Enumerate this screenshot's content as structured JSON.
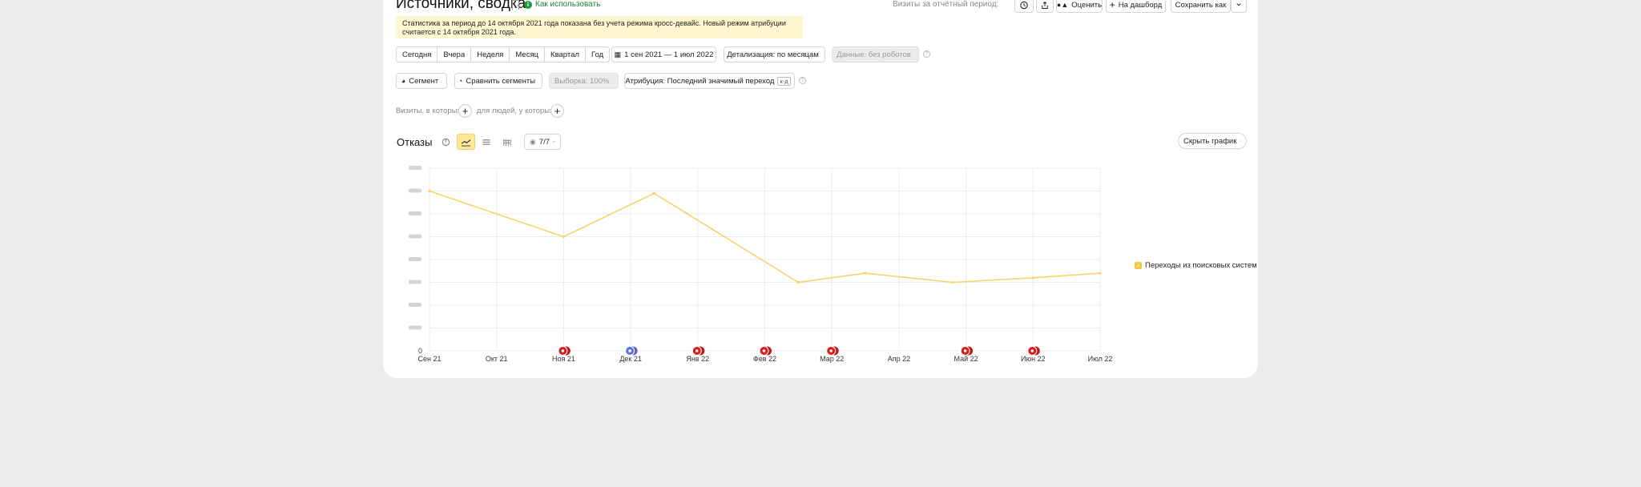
{
  "header": {
    "title": "Источники, сводка",
    "help_link": "Как использовать",
    "visits_label": "Визиты за отчётный период:",
    "rate_button": "Оценить",
    "dashboard_button": "На дашборд",
    "save_as_button": "Сохранить как"
  },
  "notice": {
    "line1": "Статистика за период до 14 октября 2021 года показана без учета режима кросс-девайс. Новый режим атрибуции",
    "line2": "считается с 14 октября 2021 года."
  },
  "period": {
    "options": [
      "Сегодня",
      "Вчера",
      "Неделя",
      "Месяц",
      "Квартал",
      "Год"
    ],
    "date_range": "1 сен 2021 — 1 июл 2022",
    "detail": "Детализация: по месяцам",
    "data_filter": "Данные: без роботов"
  },
  "filters": {
    "segment": "Сегмент",
    "compare": "Сравнить сегменты",
    "sample": "Выборка: 100%",
    "attribution": "Атрибуция: Последний значимый переход",
    "attribution_badge": "к-д"
  },
  "conditions": {
    "visits_where": "Визиты, в которых",
    "people_where": "для людей, у которых"
  },
  "chart_controls": {
    "metric_title": "Отказы",
    "series_counter": "7/7",
    "hide_chart": "Скрыть график"
  },
  "chart_data": {
    "type": "line",
    "categories": [
      "Сен 21",
      "Окт 21",
      "Ноя 21",
      "Дек 21",
      "Янв 22",
      "Фев 22",
      "Мар 22",
      "Апр 22",
      "Май 22",
      "Июн 22",
      "Июл 22"
    ],
    "ytick_zero": "0",
    "ylim": [
      0,
      1600
    ],
    "series": [
      {
        "name": "Переходы из поисковых систем",
        "color": "#f5d36b",
        "x": [
          0,
          2,
          3.35,
          5.5,
          6.5,
          7.8,
          9,
          10
        ],
        "values": [
          1400,
          1000,
          1380,
          600,
          680,
          600,
          640,
          680
        ]
      }
    ],
    "annotation_months": [
      "Ноя 21",
      "Дек 21",
      "Янв 22",
      "Фев 22",
      "Мар 22",
      "Май 22",
      "Июн 22"
    ]
  }
}
